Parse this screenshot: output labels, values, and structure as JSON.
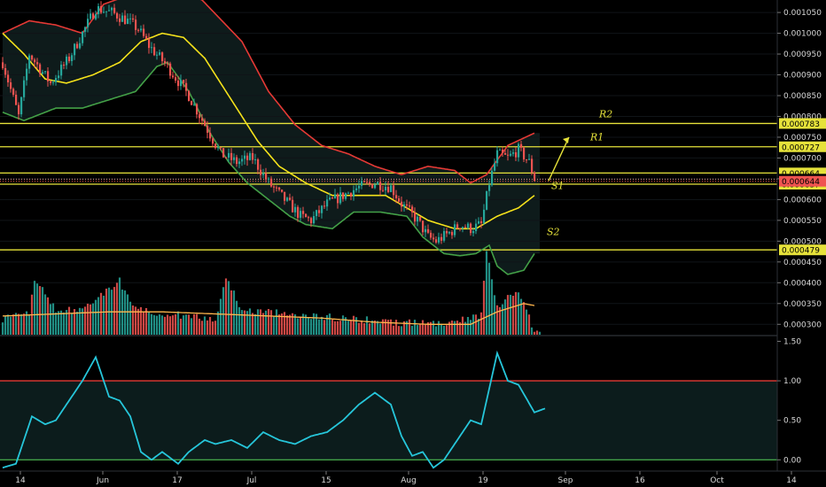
{
  "chart_data": {
    "type": "candlestick",
    "colors": {
      "background": "#000000",
      "up": "#26a69a",
      "down": "#ef5350",
      "upper_band": "#e53935",
      "lower_band": "#43a047",
      "middle_band": "#f5e21b",
      "level_line": "#e6e23a",
      "osc_line": "#26c6da",
      "osc_upper": "#e53935",
      "osc_lower": "#43a047",
      "vol_ma": "#ffb74d"
    },
    "x_axis": {
      "labels": [
        "14",
        "Jun",
        "17",
        "Jul",
        "15",
        "Aug",
        "19",
        "Sep",
        "16",
        "Oct",
        "14"
      ],
      "label_bar_index": [
        0,
        31,
        59,
        87,
        115,
        146,
        174,
        205,
        233,
        262,
        290
      ]
    },
    "price_axis": {
      "ticks": [
        "0.001050",
        "0.001000",
        "0.000950",
        "0.000900",
        "0.000850",
        "0.000800",
        "0.000750",
        "0.000700",
        "0.000650",
        "0.000600",
        "0.000550",
        "0.000500",
        "0.000450",
        "0.000400",
        "0.000350",
        "0.000300"
      ],
      "range": [
        0.000275,
        0.00108
      ]
    },
    "osc_axis": {
      "ticks": [
        "1.50",
        "1.00",
        "0.50",
        "0.00"
      ],
      "range": [
        -0.12,
        1.55
      ],
      "upper_level": 1.0,
      "lower_level": 0.0
    },
    "levels": [
      {
        "label": "R2",
        "value": 0.000783,
        "tag": "0.000783"
      },
      {
        "label": "R1",
        "value": 0.000727,
        "tag": "0.000727"
      },
      {
        "label": "",
        "value": 0.000664,
        "tag": "0.000664"
      },
      {
        "label": "S1",
        "value": 0.000637,
        "tag": "0.000637"
      },
      {
        "label": "S2",
        "value": 0.000479,
        "tag": "0.000479"
      }
    ],
    "price_tags": [
      {
        "text": "0.000649",
        "value": 0.000649,
        "kind": "current"
      },
      {
        "text": "0.000644",
        "value": 0.000644,
        "kind": "red"
      }
    ],
    "annotations": [
      "R2",
      "R1",
      "S1",
      "S2"
    ],
    "candle_keypoints": [
      [
        0,
        0.00093
      ],
      [
        6,
        0.0008
      ],
      [
        10,
        0.00095
      ],
      [
        18,
        0.00088
      ],
      [
        25,
        0.00094
      ],
      [
        30,
        0.001
      ],
      [
        35,
        0.00106
      ],
      [
        41,
        0.00105
      ],
      [
        47,
        0.00103
      ],
      [
        51,
        0.00101
      ],
      [
        55,
        0.00097
      ],
      [
        62,
        0.00092
      ],
      [
        70,
        0.00085
      ],
      [
        76,
        0.00078
      ],
      [
        82,
        0.00071
      ],
      [
        88,
        0.00069
      ],
      [
        94,
        0.0007
      ],
      [
        100,
        0.00064
      ],
      [
        106,
        0.0006
      ],
      [
        112,
        0.00056
      ],
      [
        116,
        0.00055
      ],
      [
        122,
        0.00059
      ],
      [
        128,
        0.00061
      ],
      [
        134,
        0.00063
      ],
      [
        140,
        0.00064
      ],
      [
        146,
        0.00063
      ],
      [
        150,
        0.00059
      ],
      [
        156,
        0.00055
      ],
      [
        160,
        0.00051
      ],
      [
        163,
        0.0005
      ],
      [
        168,
        0.00052
      ],
      [
        172,
        0.00054
      ],
      [
        176,
        0.00053
      ],
      [
        180,
        0.00054
      ],
      [
        183,
        0.00064
      ],
      [
        186,
        0.00071
      ],
      [
        190,
        0.0007
      ],
      [
        194,
        0.00072
      ],
      [
        198,
        0.00069
      ],
      [
        200,
        0.00065
      ]
    ],
    "upper_band_keypoints": [
      [
        0,
        0.001
      ],
      [
        10,
        0.00103
      ],
      [
        20,
        0.00102
      ],
      [
        30,
        0.001
      ],
      [
        38,
        0.00107
      ],
      [
        60,
        0.00112
      ],
      [
        75,
        0.00108
      ],
      [
        90,
        0.00098
      ],
      [
        100,
        0.00086
      ],
      [
        110,
        0.00078
      ],
      [
        120,
        0.00073
      ],
      [
        130,
        0.00071
      ],
      [
        140,
        0.00068
      ],
      [
        150,
        0.00066
      ],
      [
        160,
        0.00068
      ],
      [
        170,
        0.00067
      ],
      [
        176,
        0.00064
      ],
      [
        182,
        0.00066
      ],
      [
        190,
        0.00073
      ],
      [
        200,
        0.00076
      ]
    ],
    "lower_band_keypoints": [
      [
        0,
        0.00081
      ],
      [
        8,
        0.00079
      ],
      [
        20,
        0.00082
      ],
      [
        30,
        0.00082
      ],
      [
        40,
        0.00084
      ],
      [
        50,
        0.00086
      ],
      [
        58,
        0.00092
      ],
      [
        62,
        0.00093
      ],
      [
        70,
        0.00086
      ],
      [
        78,
        0.00076
      ],
      [
        85,
        0.00069
      ],
      [
        92,
        0.00064
      ],
      [
        100,
        0.0006
      ],
      [
        108,
        0.00056
      ],
      [
        114,
        0.00054
      ],
      [
        124,
        0.00053
      ],
      [
        132,
        0.00057
      ],
      [
        142,
        0.00057
      ],
      [
        152,
        0.00056
      ],
      [
        158,
        0.00051
      ],
      [
        166,
        0.00047
      ],
      [
        172,
        0.000465
      ],
      [
        178,
        0.00047
      ],
      [
        183,
        0.00049
      ],
      [
        186,
        0.00044
      ],
      [
        190,
        0.00042
      ],
      [
        196,
        0.00043
      ],
      [
        200,
        0.00047
      ]
    ],
    "middle_band_keypoints": [
      [
        0,
        0.001
      ],
      [
        8,
        0.00095
      ],
      [
        16,
        0.00089
      ],
      [
        24,
        0.00088
      ],
      [
        34,
        0.0009
      ],
      [
        44,
        0.00093
      ],
      [
        52,
        0.00098
      ],
      [
        60,
        0.001
      ],
      [
        68,
        0.00099
      ],
      [
        76,
        0.00094
      ],
      [
        86,
        0.00084
      ],
      [
        96,
        0.00074
      ],
      [
        104,
        0.00068
      ],
      [
        114,
        0.00064
      ],
      [
        124,
        0.00061
      ],
      [
        134,
        0.00061
      ],
      [
        144,
        0.00061
      ],
      [
        152,
        0.00058
      ],
      [
        160,
        0.00055
      ],
      [
        170,
        0.00053
      ],
      [
        178,
        0.00053
      ],
      [
        186,
        0.00056
      ],
      [
        194,
        0.00058
      ],
      [
        200,
        0.00061
      ]
    ],
    "volume_keypoints": [
      [
        0,
        0.00031
      ],
      [
        10,
        0.00032
      ],
      [
        12,
        0.00041
      ],
      [
        20,
        0.00033
      ],
      [
        30,
        0.00033
      ],
      [
        44,
        0.0004
      ],
      [
        50,
        0.00033
      ],
      [
        80,
        0.00031
      ],
      [
        84,
        0.00041
      ],
      [
        90,
        0.00033
      ],
      [
        110,
        0.00032
      ],
      [
        150,
        0.0003
      ],
      [
        170,
        0.0003
      ],
      [
        180,
        0.00032
      ],
      [
        182,
        0.00048
      ],
      [
        186,
        0.00034
      ],
      [
        194,
        0.00038
      ],
      [
        200,
        0.00028
      ]
    ],
    "vol_ma_keypoints": [
      [
        0,
        0.00032
      ],
      [
        20,
        0.000325
      ],
      [
        40,
        0.00033
      ],
      [
        60,
        0.00033
      ],
      [
        80,
        0.000325
      ],
      [
        100,
        0.00032
      ],
      [
        120,
        0.000315
      ],
      [
        140,
        0.000305
      ],
      [
        160,
        0.0003
      ],
      [
        176,
        0.0003
      ],
      [
        186,
        0.00033
      ],
      [
        196,
        0.00035
      ],
      [
        200,
        0.000345
      ]
    ],
    "osc_keypoints": [
      [
        0,
        -0.1
      ],
      [
        5,
        -0.05
      ],
      [
        8,
        0.25
      ],
      [
        11,
        0.55
      ],
      [
        16,
        0.45
      ],
      [
        20,
        0.5
      ],
      [
        26,
        0.8
      ],
      [
        30,
        1.0
      ],
      [
        35,
        1.3
      ],
      [
        40,
        0.8
      ],
      [
        44,
        0.75
      ],
      [
        48,
        0.55
      ],
      [
        52,
        0.1
      ],
      [
        56,
        0.0
      ],
      [
        60,
        0.1
      ],
      [
        66,
        -0.05
      ],
      [
        70,
        0.1
      ],
      [
        76,
        0.25
      ],
      [
        80,
        0.2
      ],
      [
        86,
        0.25
      ],
      [
        92,
        0.15
      ],
      [
        98,
        0.35
      ],
      [
        104,
        0.25
      ],
      [
        110,
        0.2
      ],
      [
        116,
        0.3
      ],
      [
        122,
        0.35
      ],
      [
        128,
        0.5
      ],
      [
        134,
        0.7
      ],
      [
        140,
        0.85
      ],
      [
        146,
        0.7
      ],
      [
        150,
        0.3
      ],
      [
        154,
        0.05
      ],
      [
        158,
        0.1
      ],
      [
        162,
        -0.1
      ],
      [
        166,
        0.0
      ],
      [
        170,
        0.2
      ],
      [
        176,
        0.5
      ],
      [
        180,
        0.45
      ],
      [
        186,
        1.35
      ],
      [
        190,
        1.0
      ],
      [
        194,
        0.95
      ],
      [
        200,
        0.6
      ],
      [
        204,
        0.65
      ]
    ]
  }
}
